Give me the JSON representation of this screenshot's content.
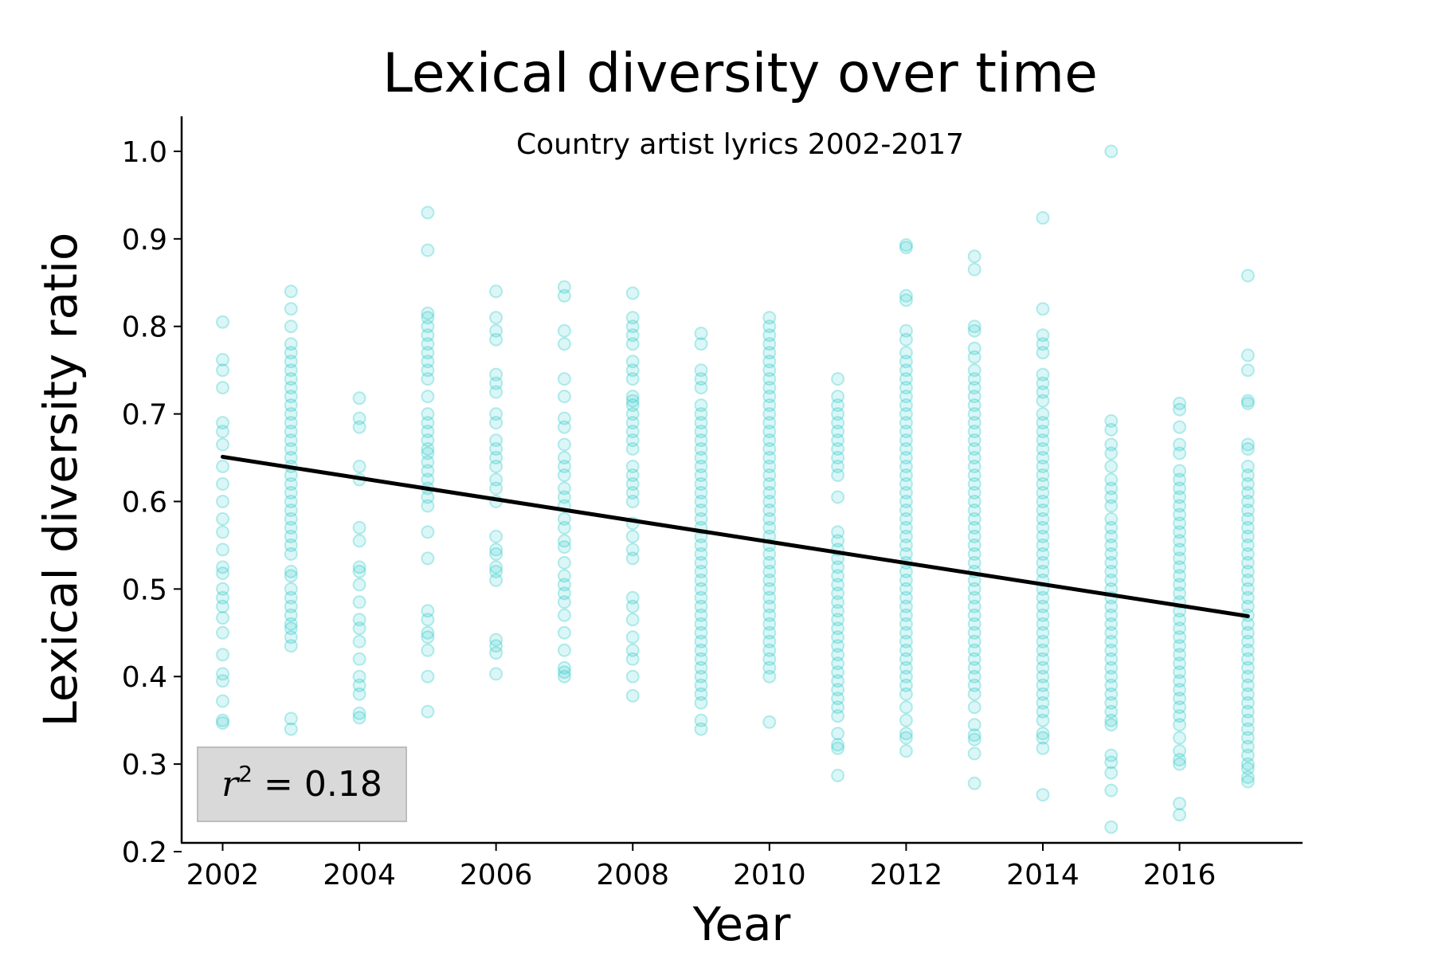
{
  "chart_data": {
    "type": "scatter",
    "title": "Lexical diversity over time",
    "subtitle": "Country artist lyrics 2002-2017",
    "xlabel": "Year",
    "ylabel": "Lexical diversity ratio",
    "xlim": [
      2001.4,
      2017.8
    ],
    "ylim": [
      0.21,
      1.04
    ],
    "xticks": [
      "2002",
      "2004",
      "2006",
      "2008",
      "2010",
      "2012",
      "2014",
      "2016"
    ],
    "yticks": [
      "0.2",
      "0.3",
      "0.4",
      "0.5",
      "0.6",
      "0.7",
      "0.8",
      "0.9",
      "1.0"
    ],
    "grid": false,
    "point_color": "#1ec4c4",
    "line_color": "#000000",
    "annotation": {
      "label": "r",
      "exponent": "2",
      "equals": " = 0.18",
      "box_fill": "#d9d9d9",
      "position": "bottom-left"
    },
    "trend_line": {
      "x": [
        2002,
        2017
      ],
      "y": [
        0.651,
        0.469
      ]
    },
    "series": [
      {
        "x": 2002,
        "y": [
          0.805,
          0.762,
          0.75,
          0.73,
          0.69,
          0.68,
          0.665,
          0.64,
          0.62,
          0.6,
          0.58,
          0.565,
          0.545,
          0.525,
          0.518,
          0.5,
          0.49,
          0.48,
          0.467,
          0.45,
          0.425,
          0.403,
          0.395,
          0.372,
          0.35,
          0.347
        ]
      },
      {
        "x": 2003,
        "y": [
          0.84,
          0.82,
          0.8,
          0.78,
          0.77,
          0.76,
          0.75,
          0.74,
          0.73,
          0.72,
          0.71,
          0.7,
          0.69,
          0.68,
          0.67,
          0.66,
          0.65,
          0.64,
          0.63,
          0.62,
          0.61,
          0.6,
          0.59,
          0.58,
          0.57,
          0.56,
          0.55,
          0.54,
          0.52,
          0.515,
          0.5,
          0.49,
          0.48,
          0.47,
          0.46,
          0.455,
          0.445,
          0.435,
          0.352,
          0.34
        ]
      },
      {
        "x": 2004,
        "y": [
          0.718,
          0.695,
          0.685,
          0.64,
          0.625,
          0.57,
          0.555,
          0.525,
          0.52,
          0.505,
          0.485,
          0.465,
          0.455,
          0.44,
          0.42,
          0.4,
          0.39,
          0.38,
          0.358,
          0.353
        ]
      },
      {
        "x": 2005,
        "y": [
          0.93,
          0.887,
          0.815,
          0.81,
          0.8,
          0.79,
          0.78,
          0.77,
          0.76,
          0.75,
          0.74,
          0.72,
          0.7,
          0.69,
          0.68,
          0.67,
          0.66,
          0.655,
          0.645,
          0.635,
          0.625,
          0.615,
          0.605,
          0.595,
          0.565,
          0.535,
          0.475,
          0.465,
          0.45,
          0.445,
          0.43,
          0.4,
          0.36
        ]
      },
      {
        "x": 2006,
        "y": [
          0.84,
          0.81,
          0.795,
          0.785,
          0.745,
          0.735,
          0.725,
          0.7,
          0.69,
          0.67,
          0.66,
          0.65,
          0.64,
          0.625,
          0.615,
          0.6,
          0.56,
          0.545,
          0.54,
          0.525,
          0.52,
          0.51,
          0.442,
          0.435,
          0.427,
          0.403
        ]
      },
      {
        "x": 2007,
        "y": [
          0.845,
          0.835,
          0.795,
          0.78,
          0.74,
          0.72,
          0.695,
          0.685,
          0.665,
          0.65,
          0.64,
          0.63,
          0.615,
          0.605,
          0.595,
          0.58,
          0.57,
          0.555,
          0.548,
          0.53,
          0.515,
          0.505,
          0.495,
          0.485,
          0.47,
          0.45,
          0.43,
          0.41,
          0.405,
          0.4
        ]
      },
      {
        "x": 2008,
        "y": [
          0.838,
          0.81,
          0.8,
          0.79,
          0.78,
          0.76,
          0.75,
          0.74,
          0.72,
          0.715,
          0.71,
          0.7,
          0.69,
          0.68,
          0.67,
          0.66,
          0.64,
          0.63,
          0.62,
          0.61,
          0.6,
          0.575,
          0.56,
          0.545,
          0.535,
          0.49,
          0.48,
          0.465,
          0.445,
          0.43,
          0.42,
          0.4,
          0.378
        ]
      },
      {
        "x": 2009,
        "y": [
          0.792,
          0.78,
          0.75,
          0.74,
          0.73,
          0.71,
          0.7,
          0.69,
          0.68,
          0.67,
          0.66,
          0.65,
          0.64,
          0.63,
          0.62,
          0.61,
          0.6,
          0.59,
          0.58,
          0.57,
          0.56,
          0.55,
          0.54,
          0.53,
          0.52,
          0.51,
          0.5,
          0.49,
          0.48,
          0.47,
          0.46,
          0.45,
          0.44,
          0.43,
          0.42,
          0.41,
          0.4,
          0.39,
          0.38,
          0.37,
          0.35,
          0.34
        ]
      },
      {
        "x": 2010,
        "y": [
          0.81,
          0.8,
          0.79,
          0.78,
          0.77,
          0.76,
          0.75,
          0.74,
          0.73,
          0.72,
          0.71,
          0.7,
          0.69,
          0.68,
          0.67,
          0.66,
          0.65,
          0.64,
          0.63,
          0.62,
          0.61,
          0.6,
          0.59,
          0.58,
          0.57,
          0.56,
          0.55,
          0.54,
          0.53,
          0.52,
          0.51,
          0.5,
          0.49,
          0.48,
          0.47,
          0.46,
          0.45,
          0.44,
          0.43,
          0.42,
          0.41,
          0.4,
          0.348
        ]
      },
      {
        "x": 2011,
        "y": [
          0.74,
          0.72,
          0.71,
          0.7,
          0.69,
          0.68,
          0.67,
          0.66,
          0.65,
          0.64,
          0.63,
          0.605,
          0.565,
          0.555,
          0.545,
          0.535,
          0.525,
          0.515,
          0.505,
          0.495,
          0.485,
          0.475,
          0.465,
          0.455,
          0.445,
          0.435,
          0.425,
          0.415,
          0.405,
          0.395,
          0.385,
          0.375,
          0.365,
          0.355,
          0.335,
          0.322,
          0.318,
          0.287
        ]
      },
      {
        "x": 2012,
        "y": [
          0.893,
          0.89,
          0.835,
          0.83,
          0.795,
          0.785,
          0.77,
          0.76,
          0.75,
          0.74,
          0.73,
          0.72,
          0.71,
          0.7,
          0.69,
          0.68,
          0.67,
          0.66,
          0.65,
          0.64,
          0.63,
          0.62,
          0.61,
          0.6,
          0.59,
          0.58,
          0.57,
          0.56,
          0.55,
          0.54,
          0.53,
          0.52,
          0.51,
          0.5,
          0.49,
          0.48,
          0.47,
          0.46,
          0.45,
          0.44,
          0.43,
          0.42,
          0.41,
          0.4,
          0.39,
          0.38,
          0.365,
          0.35,
          0.335,
          0.33,
          0.315
        ]
      },
      {
        "x": 2013,
        "y": [
          0.88,
          0.865,
          0.8,
          0.795,
          0.775,
          0.765,
          0.75,
          0.74,
          0.73,
          0.72,
          0.71,
          0.7,
          0.69,
          0.68,
          0.67,
          0.66,
          0.65,
          0.64,
          0.63,
          0.62,
          0.61,
          0.6,
          0.59,
          0.58,
          0.57,
          0.56,
          0.55,
          0.54,
          0.53,
          0.52,
          0.51,
          0.5,
          0.49,
          0.48,
          0.47,
          0.46,
          0.45,
          0.44,
          0.43,
          0.42,
          0.41,
          0.4,
          0.39,
          0.38,
          0.365,
          0.345,
          0.333,
          0.328,
          0.312,
          0.278
        ]
      },
      {
        "x": 2014,
        "y": [
          0.924,
          0.82,
          0.79,
          0.78,
          0.77,
          0.745,
          0.735,
          0.725,
          0.715,
          0.7,
          0.69,
          0.68,
          0.67,
          0.66,
          0.65,
          0.64,
          0.63,
          0.62,
          0.61,
          0.6,
          0.59,
          0.58,
          0.57,
          0.56,
          0.55,
          0.54,
          0.53,
          0.52,
          0.51,
          0.5,
          0.49,
          0.48,
          0.47,
          0.46,
          0.45,
          0.44,
          0.43,
          0.42,
          0.41,
          0.4,
          0.39,
          0.38,
          0.37,
          0.36,
          0.35,
          0.335,
          0.33,
          0.318,
          0.265
        ]
      },
      {
        "x": 2015,
        "y": [
          1.0,
          0.692,
          0.682,
          0.665,
          0.655,
          0.64,
          0.625,
          0.615,
          0.605,
          0.595,
          0.58,
          0.57,
          0.56,
          0.55,
          0.54,
          0.53,
          0.52,
          0.51,
          0.5,
          0.49,
          0.48,
          0.47,
          0.46,
          0.45,
          0.44,
          0.43,
          0.42,
          0.41,
          0.4,
          0.39,
          0.38,
          0.37,
          0.36,
          0.35,
          0.345,
          0.31,
          0.302,
          0.29,
          0.27,
          0.228
        ]
      },
      {
        "x": 2016,
        "y": [
          0.712,
          0.705,
          0.685,
          0.665,
          0.655,
          0.635,
          0.625,
          0.615,
          0.605,
          0.595,
          0.585,
          0.575,
          0.565,
          0.555,
          0.545,
          0.535,
          0.525,
          0.515,
          0.505,
          0.495,
          0.485,
          0.475,
          0.465,
          0.455,
          0.445,
          0.435,
          0.425,
          0.415,
          0.405,
          0.395,
          0.385,
          0.375,
          0.365,
          0.355,
          0.345,
          0.33,
          0.315,
          0.305,
          0.3,
          0.255,
          0.242
        ]
      },
      {
        "x": 2017,
        "y": [
          0.858,
          0.767,
          0.75,
          0.715,
          0.712,
          0.665,
          0.66,
          0.64,
          0.63,
          0.62,
          0.61,
          0.6,
          0.59,
          0.58,
          0.57,
          0.56,
          0.55,
          0.54,
          0.53,
          0.52,
          0.51,
          0.5,
          0.49,
          0.48,
          0.47,
          0.46,
          0.45,
          0.44,
          0.43,
          0.42,
          0.41,
          0.4,
          0.39,
          0.38,
          0.37,
          0.36,
          0.35,
          0.34,
          0.33,
          0.32,
          0.31,
          0.3,
          0.295,
          0.285,
          0.28
        ]
      }
    ]
  }
}
